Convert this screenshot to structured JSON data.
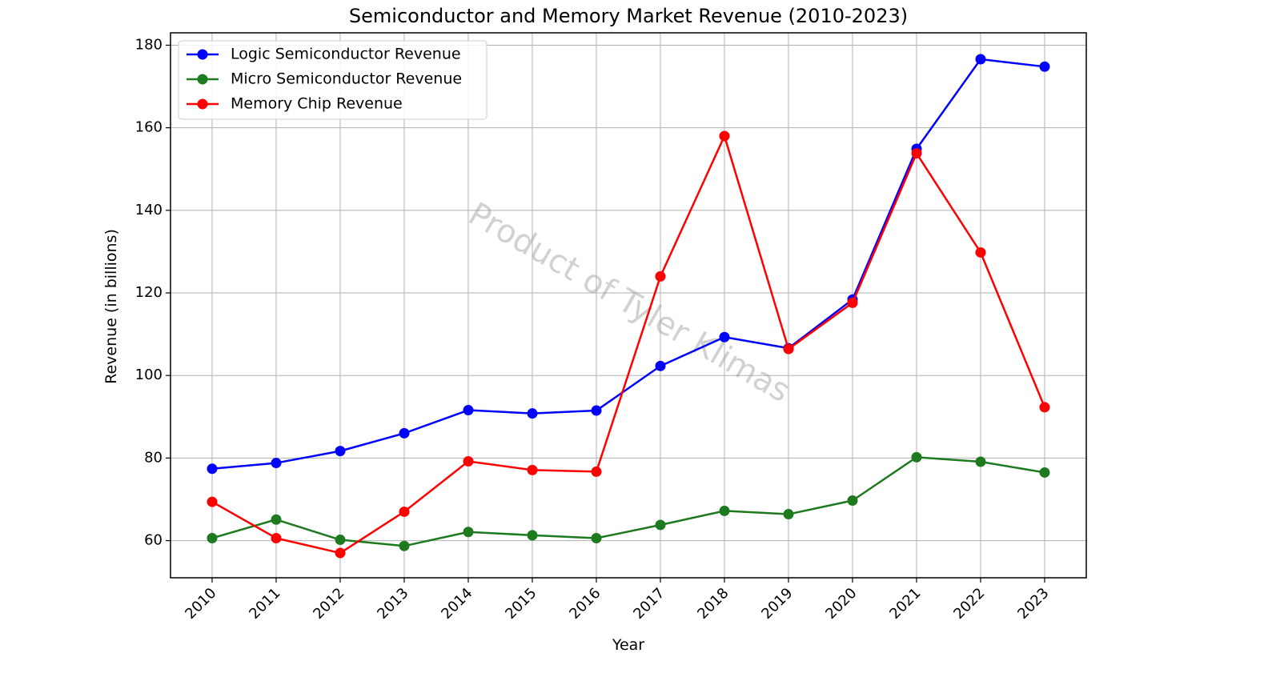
{
  "chart_data": {
    "type": "line",
    "title": "Semiconductor and Memory Market Revenue (2010-2023)",
    "xlabel": "Year",
    "ylabel": "Revenue (in billions)",
    "categories": [
      "2010",
      "2011",
      "2012",
      "2013",
      "2014",
      "2015",
      "2016",
      "2017",
      "2018",
      "2019",
      "2020",
      "2021",
      "2022",
      "2023"
    ],
    "ylim": [
      51,
      183
    ],
    "yticks": [
      60,
      80,
      100,
      120,
      140,
      160,
      180
    ],
    "grid": true,
    "legend_position": "top-left",
    "series": [
      {
        "name": "Logic Semiconductor Revenue",
        "color": "#0000ff",
        "marker": "circle",
        "values": [
          77.4,
          78.8,
          81.7,
          86.0,
          91.6,
          90.8,
          91.5,
          102.3,
          109.3,
          106.6,
          118.4,
          154.9,
          176.6,
          174.8
        ]
      },
      {
        "name": "Micro Semiconductor Revenue",
        "color": "#1e7a1e",
        "marker": "circle",
        "values": [
          60.6,
          65.1,
          60.2,
          58.7,
          62.1,
          61.3,
          60.6,
          63.8,
          67.2,
          66.4,
          69.7,
          80.2,
          79.1,
          76.5
        ]
      },
      {
        "name": "Memory Chip Revenue",
        "color": "#ff0000",
        "marker": "circle",
        "values": [
          69.4,
          60.6,
          57.0,
          67.0,
          79.2,
          77.1,
          76.7,
          124.0,
          158.0,
          106.4,
          117.6,
          153.8,
          129.8,
          92.3
        ]
      }
    ]
  },
  "watermark": {
    "text": "Product of Tyler Klimas"
  }
}
